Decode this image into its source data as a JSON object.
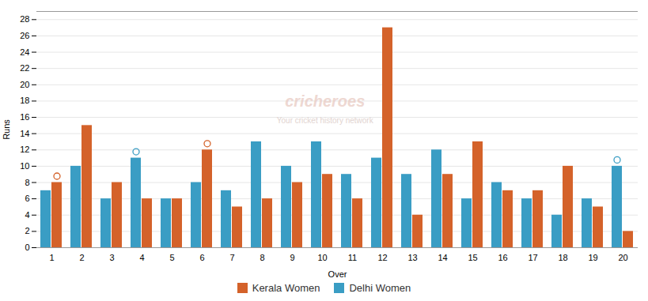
{
  "chart_data": {
    "type": "bar",
    "categories": [
      1,
      2,
      3,
      4,
      5,
      6,
      7,
      8,
      9,
      10,
      11,
      12,
      13,
      14,
      15,
      16,
      17,
      18,
      19,
      20
    ],
    "xlabel": "Over",
    "ylabel": "Runs",
    "series": [
      {
        "name": "Delhi Women",
        "color": "#3a9dc4",
        "values": [
          7,
          10,
          6,
          11,
          6,
          8,
          7,
          13,
          10,
          13,
          9,
          11,
          9,
          12,
          6,
          8,
          6,
          4,
          6,
          10
        ],
        "wickets": [
          4,
          20
        ]
      },
      {
        "name": "Kerala Women",
        "color": "#d4622a",
        "values": [
          8,
          15,
          8,
          6,
          6,
          12,
          5,
          6,
          8,
          9,
          6,
          27,
          4,
          9,
          13,
          7,
          7,
          10,
          5,
          2
        ],
        "wickets": [
          1,
          6
        ]
      }
    ],
    "ylim": [
      0,
      29
    ],
    "yticks": [
      0,
      2,
      4,
      6,
      8,
      10,
      12,
      14,
      16,
      18,
      20,
      22,
      24,
      26,
      28
    ],
    "grid": true,
    "legend": "bottom",
    "annotations": [
      "cricheroes",
      "Your cricket history network"
    ]
  }
}
